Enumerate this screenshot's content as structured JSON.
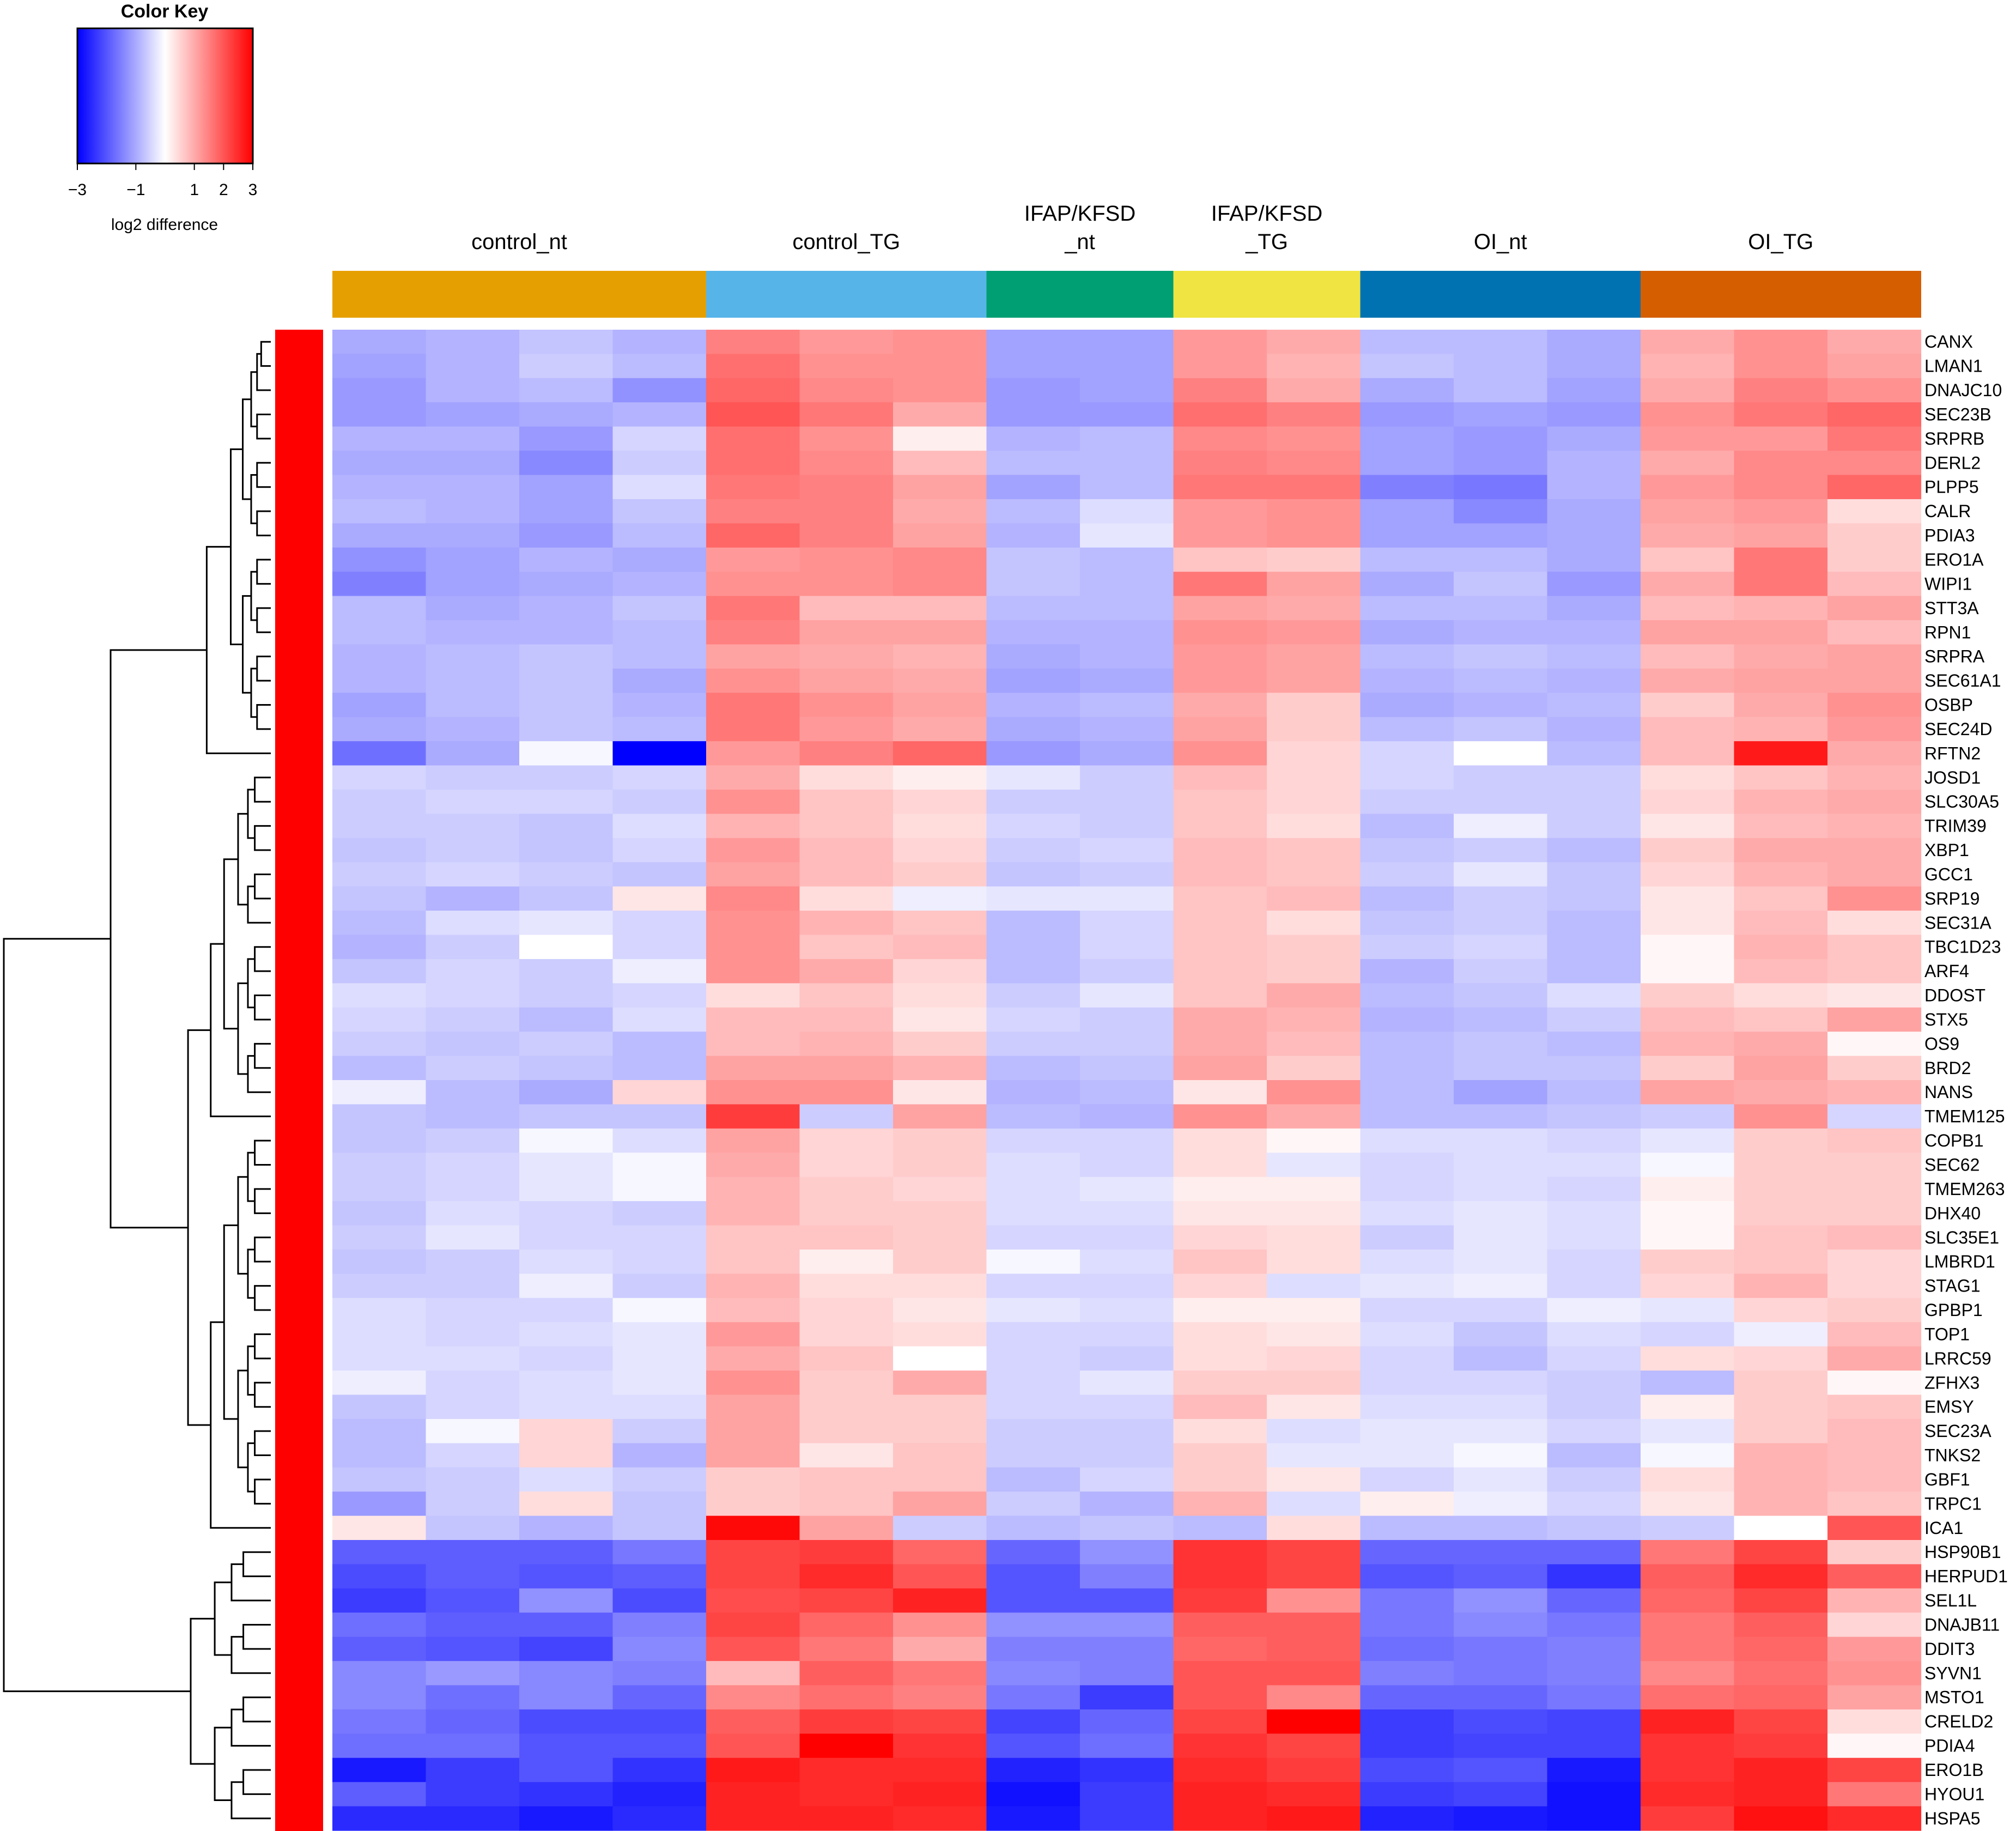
{
  "chart_data": {
    "type": "heatmap",
    "color_key": {
      "title": "Color Key",
      "xlabel": "log2 difference",
      "ticks": [
        "−3",
        "−1",
        "1",
        "2",
        "3"
      ],
      "tick_values": [
        -3,
        -1,
        1,
        2,
        3
      ],
      "range": [
        -3,
        3
      ],
      "colors": [
        "#0000ff",
        "#ffffff",
        "#ff0000"
      ]
    },
    "row_side_color": "#ff0000",
    "groups": [
      {
        "label_lines": [
          "control_nt"
        ],
        "color": "#e69f00",
        "ncols": 4
      },
      {
        "label_lines": [
          "control_TG"
        ],
        "color": "#56b4e9",
        "ncols": 3
      },
      {
        "label_lines": [
          "IFAP/KFSD",
          "_nt"
        ],
        "color": "#009e73",
        "ncols": 2
      },
      {
        "label_lines": [
          "IFAP/KFSD",
          "_TG"
        ],
        "color": "#f0e442",
        "ncols": 2
      },
      {
        "label_lines": [
          "OI_nt"
        ],
        "color": "#0072b2",
        "ncols": 3
      },
      {
        "label_lines": [
          "OI_TG"
        ],
        "color": "#d55e00",
        "ncols": 3
      }
    ],
    "rows": [
      "CANX",
      "LMAN1",
      "DNAJC10",
      "SEC23B",
      "SRPRB",
      "DERL2",
      "PLPP5",
      "CALR",
      "PDIA3",
      "ERO1A",
      "WIPI1",
      "STT3A",
      "RPN1",
      "SRPRA",
      "SEC61A1",
      "OSBP",
      "SEC24D",
      "RFTN2",
      "JOSD1",
      "SLC30A5",
      "TRIM39",
      "XBP1",
      "GCC1",
      "SRP19",
      "SEC31A",
      "TBC1D23",
      "ARF4",
      "DDOST",
      "STX5",
      "OS9",
      "BRD2",
      "NANS",
      "TMEM125",
      "COPB1",
      "SEC62",
      "TMEM263",
      "DHX40",
      "SLC35E1",
      "LMBRD1",
      "STAG1",
      "GPBP1",
      "TOP1",
      "LRRC59",
      "ZFHX3",
      "EMSY",
      "SEC23A",
      "TNKS2",
      "GBF1",
      "TRPC1",
      "ICA1",
      "HSP90B1",
      "HERPUD1",
      "SEL1L",
      "DNAJB11",
      "DDIT3",
      "SYVN1",
      "MSTO1",
      "CRELD2",
      "PDIA4",
      "ERO1B",
      "HYOU1",
      "HSPA5"
    ],
    "values": [
      [
        -1.0,
        -0.9,
        -0.7,
        -0.9,
        1.5,
        1.2,
        1.3,
        -1.1,
        -1.1,
        1.2,
        1.0,
        -0.8,
        -0.8,
        -1.0,
        1.0,
        1.3,
        1.0
      ],
      [
        -1.1,
        -0.9,
        -0.6,
        -0.8,
        1.7,
        1.3,
        1.3,
        -1.1,
        -1.1,
        1.2,
        0.9,
        -0.7,
        -0.8,
        -1.0,
        0.9,
        1.3,
        1.1
      ],
      [
        -1.2,
        -0.9,
        -0.8,
        -1.3,
        1.8,
        1.4,
        1.3,
        -1.2,
        -1.1,
        1.5,
        1.0,
        -1.0,
        -0.8,
        -1.1,
        1.0,
        1.5,
        1.3
      ],
      [
        -1.2,
        -1.1,
        -1.0,
        -0.9,
        2.0,
        1.6,
        1.0,
        -1.2,
        -1.2,
        1.7,
        1.5,
        -1.2,
        -1.1,
        -1.2,
        1.3,
        1.6,
        1.8
      ],
      [
        -0.9,
        -0.9,
        -1.2,
        -0.5,
        1.7,
        1.3,
        0.2,
        -0.9,
        -0.8,
        1.4,
        1.3,
        -1.1,
        -1.2,
        -1.0,
        1.2,
        1.2,
        1.6
      ],
      [
        -1.0,
        -1.0,
        -1.4,
        -0.6,
        1.7,
        1.4,
        0.8,
        -0.8,
        -0.8,
        1.5,
        1.4,
        -1.1,
        -1.2,
        -0.9,
        1.0,
        1.4,
        1.4
      ],
      [
        -0.9,
        -0.9,
        -1.1,
        -0.4,
        1.6,
        1.5,
        1.1,
        -1.1,
        -0.8,
        1.6,
        1.6,
        -1.5,
        -1.6,
        -0.9,
        1.2,
        1.4,
        1.8
      ],
      [
        -0.8,
        -0.9,
        -1.1,
        -0.7,
        1.5,
        1.5,
        1.0,
        -0.8,
        -0.4,
        1.2,
        1.3,
        -1.1,
        -1.4,
        -1.0,
        1.1,
        1.2,
        0.4
      ],
      [
        -1.0,
        -1.0,
        -1.2,
        -0.8,
        1.8,
        1.5,
        1.1,
        -0.9,
        -0.3,
        1.2,
        1.3,
        -1.1,
        -1.1,
        -1.0,
        1.0,
        1.1,
        0.6
      ],
      [
        -1.3,
        -1.1,
        -0.9,
        -1.0,
        1.2,
        1.3,
        1.4,
        -0.7,
        -0.8,
        0.7,
        0.6,
        -0.8,
        -0.8,
        -1.0,
        0.7,
        1.6,
        0.6
      ],
      [
        -1.5,
        -1.1,
        -1.0,
        -0.9,
        1.3,
        1.3,
        1.4,
        -0.7,
        -0.8,
        1.6,
        1.1,
        -1.0,
        -0.7,
        -1.2,
        1.0,
        1.6,
        0.8
      ],
      [
        -0.8,
        -1.0,
        -0.9,
        -0.7,
        1.6,
        0.8,
        0.8,
        -0.8,
        -0.8,
        1.1,
        1.0,
        -0.8,
        -0.8,
        -1.0,
        0.8,
        0.9,
        1.1
      ],
      [
        -0.8,
        -0.9,
        -0.9,
        -0.8,
        1.5,
        1.1,
        1.1,
        -0.9,
        -0.9,
        1.3,
        1.2,
        -1.0,
        -0.9,
        -0.9,
        1.1,
        1.1,
        0.8
      ],
      [
        -0.9,
        -0.8,
        -0.7,
        -0.8,
        1.1,
        1.0,
        0.9,
        -1.0,
        -0.9,
        1.2,
        1.1,
        -0.8,
        -0.7,
        -0.8,
        0.8,
        1.0,
        1.1
      ],
      [
        -0.9,
        -0.8,
        -0.7,
        -1.0,
        1.3,
        1.1,
        1.0,
        -1.1,
        -1.0,
        1.2,
        1.1,
        -0.9,
        -0.8,
        -0.9,
        1.0,
        1.1,
        1.1
      ],
      [
        -1.1,
        -0.8,
        -0.7,
        -0.9,
        1.6,
        1.3,
        1.1,
        -0.9,
        -0.8,
        1.0,
        0.6,
        -1.0,
        -0.9,
        -0.8,
        0.6,
        1.0,
        1.3
      ],
      [
        -1.0,
        -0.9,
        -0.7,
        -0.8,
        1.6,
        1.2,
        1.0,
        -1.0,
        -0.9,
        1.1,
        0.6,
        -0.8,
        -0.7,
        -0.9,
        0.8,
        0.9,
        1.2
      ],
      [
        -1.7,
        -1.0,
        -0.1,
        -3.0,
        1.2,
        1.5,
        1.8,
        -1.2,
        -1.0,
        1.3,
        0.5,
        -0.5,
        0.0,
        -0.8,
        0.8,
        2.7,
        1.0
      ],
      [
        -0.5,
        -0.6,
        -0.6,
        -0.5,
        1.0,
        0.4,
        0.2,
        -0.3,
        -0.6,
        0.8,
        0.5,
        -0.5,
        -0.6,
        -0.6,
        0.4,
        0.7,
        0.9
      ],
      [
        -0.6,
        -0.5,
        -0.5,
        -0.6,
        1.3,
        0.7,
        0.5,
        -0.6,
        -0.6,
        0.7,
        0.5,
        -0.6,
        -0.6,
        -0.6,
        0.5,
        0.9,
        1.0
      ],
      [
        -0.6,
        -0.6,
        -0.7,
        -0.4,
        0.9,
        0.7,
        0.4,
        -0.5,
        -0.6,
        0.7,
        0.4,
        -0.8,
        -0.2,
        -0.6,
        0.3,
        0.8,
        0.9
      ],
      [
        -0.7,
        -0.6,
        -0.7,
        -0.5,
        1.2,
        0.8,
        0.5,
        -0.6,
        -0.5,
        0.8,
        0.7,
        -0.7,
        -0.6,
        -0.8,
        0.6,
        1.0,
        1.0
      ],
      [
        -0.6,
        -0.5,
        -0.6,
        -0.7,
        1.1,
        0.8,
        0.6,
        -0.7,
        -0.6,
        0.8,
        0.7,
        -0.6,
        -0.3,
        -0.7,
        0.5,
        0.9,
        1.0
      ],
      [
        -0.7,
        -0.9,
        -0.7,
        0.3,
        1.4,
        0.4,
        -0.2,
        -0.3,
        -0.3,
        0.7,
        0.8,
        -0.8,
        -0.6,
        -0.7,
        0.3,
        0.7,
        1.3
      ],
      [
        -0.8,
        -0.4,
        -0.3,
        -0.5,
        1.3,
        0.9,
        0.7,
        -0.8,
        -0.5,
        0.7,
        0.4,
        -0.7,
        -0.6,
        -0.8,
        0.3,
        0.8,
        0.4
      ],
      [
        -0.9,
        -0.6,
        0.0,
        -0.5,
        1.3,
        0.7,
        0.8,
        -0.8,
        -0.5,
        0.7,
        0.6,
        -0.6,
        -0.5,
        -0.8,
        0.1,
        0.9,
        0.7
      ],
      [
        -0.7,
        -0.5,
        -0.6,
        -0.2,
        1.3,
        1.0,
        0.5,
        -0.8,
        -0.6,
        0.7,
        0.6,
        -0.9,
        -0.6,
        -0.8,
        0.1,
        0.8,
        0.7
      ],
      [
        -0.4,
        -0.5,
        -0.6,
        -0.5,
        0.4,
        0.7,
        0.4,
        -0.6,
        -0.3,
        0.7,
        1.0,
        -0.8,
        -0.7,
        -0.4,
        0.6,
        0.4,
        0.3
      ],
      [
        -0.5,
        -0.6,
        -0.8,
        -0.4,
        0.8,
        0.8,
        0.3,
        -0.5,
        -0.6,
        1.0,
        0.9,
        -0.9,
        -0.8,
        -0.6,
        0.8,
        0.7,
        1.1
      ],
      [
        -0.6,
        -0.7,
        -0.6,
        -0.8,
        0.8,
        0.9,
        0.6,
        -0.6,
        -0.6,
        1.0,
        0.8,
        -0.8,
        -0.7,
        -0.8,
        0.9,
        1.0,
        0.1
      ],
      [
        -0.8,
        -0.6,
        -0.7,
        -0.8,
        1.1,
        1.1,
        0.9,
        -0.8,
        -0.7,
        1.1,
        0.6,
        -0.8,
        -0.7,
        -0.7,
        0.6,
        1.1,
        0.6
      ],
      [
        -0.2,
        -0.8,
        -1.0,
        0.5,
        1.3,
        1.3,
        0.3,
        -0.9,
        -0.8,
        0.3,
        1.3,
        -0.8,
        -1.1,
        -0.8,
        1.1,
        1.0,
        0.9
      ],
      [
        -0.7,
        -0.8,
        -0.7,
        -0.7,
        2.3,
        -0.6,
        1.1,
        -0.8,
        -0.9,
        1.3,
        1.0,
        -0.8,
        -0.8,
        -0.7,
        -0.6,
        1.3,
        -0.5
      ],
      [
        -0.7,
        -0.6,
        -0.1,
        -0.4,
        1.1,
        0.5,
        0.6,
        -0.5,
        -0.5,
        0.4,
        0.1,
        -0.4,
        -0.4,
        -0.5,
        -0.3,
        0.6,
        0.7
      ],
      [
        -0.6,
        -0.5,
        -0.3,
        -0.1,
        1.0,
        0.5,
        0.6,
        -0.4,
        -0.5,
        0.4,
        -0.3,
        -0.5,
        -0.4,
        -0.4,
        -0.1,
        0.6,
        0.6
      ],
      [
        -0.6,
        -0.5,
        -0.3,
        -0.1,
        0.9,
        0.6,
        0.5,
        -0.4,
        -0.3,
        0.2,
        0.2,
        -0.5,
        -0.4,
        -0.5,
        0.2,
        0.6,
        0.6
      ],
      [
        -0.7,
        -0.4,
        -0.5,
        -0.6,
        0.9,
        0.6,
        0.6,
        -0.4,
        -0.4,
        0.3,
        0.3,
        -0.4,
        -0.3,
        -0.4,
        0.1,
        0.6,
        0.6
      ],
      [
        -0.6,
        -0.3,
        -0.5,
        -0.5,
        0.7,
        0.7,
        0.6,
        -0.5,
        -0.5,
        0.5,
        0.4,
        -0.6,
        -0.3,
        -0.4,
        0.1,
        0.7,
        0.8
      ],
      [
        -0.7,
        -0.6,
        -0.4,
        -0.5,
        0.7,
        0.2,
        0.6,
        -0.1,
        -0.4,
        0.7,
        0.4,
        -0.4,
        -0.3,
        -0.5,
        0.6,
        0.7,
        0.5
      ],
      [
        -0.6,
        -0.6,
        -0.2,
        -0.6,
        0.9,
        0.4,
        0.4,
        -0.5,
        -0.5,
        0.5,
        -0.4,
        -0.3,
        -0.2,
        -0.5,
        0.5,
        0.9,
        0.5
      ],
      [
        -0.4,
        -0.5,
        -0.5,
        -0.1,
        0.8,
        0.5,
        0.3,
        -0.3,
        -0.4,
        0.2,
        0.2,
        -0.5,
        -0.5,
        -0.2,
        -0.3,
        0.5,
        0.6
      ],
      [
        -0.4,
        -0.5,
        -0.4,
        -0.3,
        1.2,
        0.5,
        0.4,
        -0.5,
        -0.5,
        0.4,
        0.3,
        -0.4,
        -0.7,
        -0.4,
        -0.5,
        -0.2,
        0.8
      ],
      [
        -0.4,
        -0.4,
        -0.5,
        -0.3,
        1.0,
        0.7,
        0.0,
        -0.5,
        -0.6,
        0.4,
        0.5,
        -0.5,
        -0.8,
        -0.5,
        0.4,
        0.5,
        1.0
      ],
      [
        -0.2,
        -0.5,
        -0.4,
        -0.3,
        1.3,
        0.6,
        1.0,
        -0.5,
        -0.3,
        0.6,
        0.6,
        -0.5,
        -0.5,
        -0.6,
        -0.8,
        0.6,
        0.1
      ],
      [
        -0.7,
        -0.5,
        -0.4,
        -0.4,
        1.1,
        0.6,
        0.6,
        -0.5,
        -0.5,
        0.8,
        0.3,
        -0.4,
        -0.4,
        -0.6,
        0.2,
        0.6,
        0.7
      ],
      [
        -0.8,
        -0.1,
        0.5,
        -0.6,
        1.1,
        0.6,
        0.6,
        -0.6,
        -0.6,
        0.4,
        -0.4,
        -0.3,
        -0.3,
        -0.5,
        -0.3,
        0.6,
        0.8
      ],
      [
        -0.8,
        -0.5,
        0.5,
        -0.9,
        1.1,
        0.3,
        0.7,
        -0.6,
        -0.6,
        0.6,
        -0.3,
        -0.3,
        -0.1,
        -0.8,
        -0.1,
        0.9,
        0.8
      ],
      [
        -0.7,
        -0.6,
        -0.4,
        -0.6,
        0.6,
        0.7,
        0.7,
        -0.8,
        -0.5,
        0.6,
        0.3,
        -0.5,
        -0.3,
        -0.6,
        0.4,
        0.9,
        0.8
      ],
      [
        -1.2,
        -0.6,
        0.4,
        -0.7,
        0.6,
        0.7,
        1.1,
        -0.6,
        -0.9,
        0.9,
        -0.4,
        0.2,
        -0.2,
        -0.5,
        0.3,
        0.9,
        0.7
      ],
      [
        0.3,
        -0.7,
        -0.9,
        -0.7,
        2.9,
        1.1,
        -0.6,
        -0.8,
        -0.7,
        -0.8,
        0.4,
        -0.8,
        -0.8,
        -0.7,
        -0.6,
        0.0,
        2.0
      ],
      [
        -1.9,
        -1.9,
        -1.9,
        -1.6,
        2.2,
        2.3,
        1.8,
        -1.8,
        -1.3,
        2.4,
        2.2,
        -1.8,
        -1.8,
        -1.8,
        1.6,
        2.2,
        0.6
      ],
      [
        -2.1,
        -1.9,
        -2.0,
        -1.9,
        2.2,
        2.5,
        2.0,
        -2.0,
        -1.5,
        2.4,
        2.2,
        -2.0,
        -1.9,
        -2.4,
        1.9,
        2.5,
        1.9
      ],
      [
        -2.3,
        -2.0,
        -1.3,
        -2.1,
        2.1,
        2.2,
        2.6,
        -2.0,
        -2.0,
        2.3,
        1.3,
        -1.6,
        -1.3,
        -1.8,
        1.8,
        2.2,
        0.9
      ],
      [
        -1.7,
        -1.9,
        -1.9,
        -1.5,
        2.2,
        1.8,
        1.3,
        -1.3,
        -1.3,
        1.9,
        1.9,
        -1.6,
        -1.4,
        -1.6,
        1.6,
        1.9,
        0.5
      ],
      [
        -1.9,
        -2.0,
        -2.2,
        -1.4,
        2.0,
        1.6,
        1.0,
        -1.5,
        -1.5,
        1.8,
        1.9,
        -1.7,
        -1.6,
        -1.5,
        1.6,
        1.8,
        1.2
      ],
      [
        -1.4,
        -1.2,
        -1.4,
        -1.5,
        0.8,
        1.9,
        1.6,
        -1.4,
        -1.5,
        2.0,
        2.0,
        -1.5,
        -1.6,
        -1.5,
        1.4,
        1.7,
        1.3
      ],
      [
        -1.4,
        -1.7,
        -1.4,
        -1.8,
        1.4,
        1.7,
        1.5,
        -1.6,
        -2.3,
        2.0,
        1.4,
        -1.8,
        -1.8,
        -1.6,
        1.7,
        1.8,
        1.1
      ],
      [
        -1.6,
        -1.8,
        -2.1,
        -2.1,
        1.9,
        2.3,
        2.2,
        -2.2,
        -1.8,
        2.2,
        3.0,
        -2.3,
        -2.1,
        -2.2,
        2.6,
        2.2,
        0.4
      ],
      [
        -1.7,
        -1.7,
        -2.0,
        -2.0,
        2.0,
        3.0,
        2.4,
        -2.0,
        -1.7,
        2.4,
        2.2,
        -2.3,
        -2.2,
        -2.2,
        2.4,
        2.3,
        0.1
      ],
      [
        -2.7,
        -2.3,
        -2.0,
        -2.4,
        2.7,
        2.5,
        2.5,
        -2.6,
        -2.4,
        2.5,
        2.3,
        -2.1,
        -2.0,
        -2.7,
        2.4,
        2.6,
        2.2
      ],
      [
        -1.9,
        -2.3,
        -2.4,
        -2.6,
        2.6,
        2.5,
        2.6,
        -2.8,
        -2.3,
        2.6,
        2.5,
        -2.3,
        -2.2,
        -2.8,
        2.5,
        2.6,
        1.6
      ],
      [
        -2.5,
        -2.5,
        -2.7,
        -2.5,
        2.6,
        2.6,
        2.5,
        -2.7,
        -2.3,
        2.6,
        2.7,
        -2.6,
        -2.7,
        -2.8,
        2.3,
        2.8,
        2.5
      ]
    ]
  }
}
